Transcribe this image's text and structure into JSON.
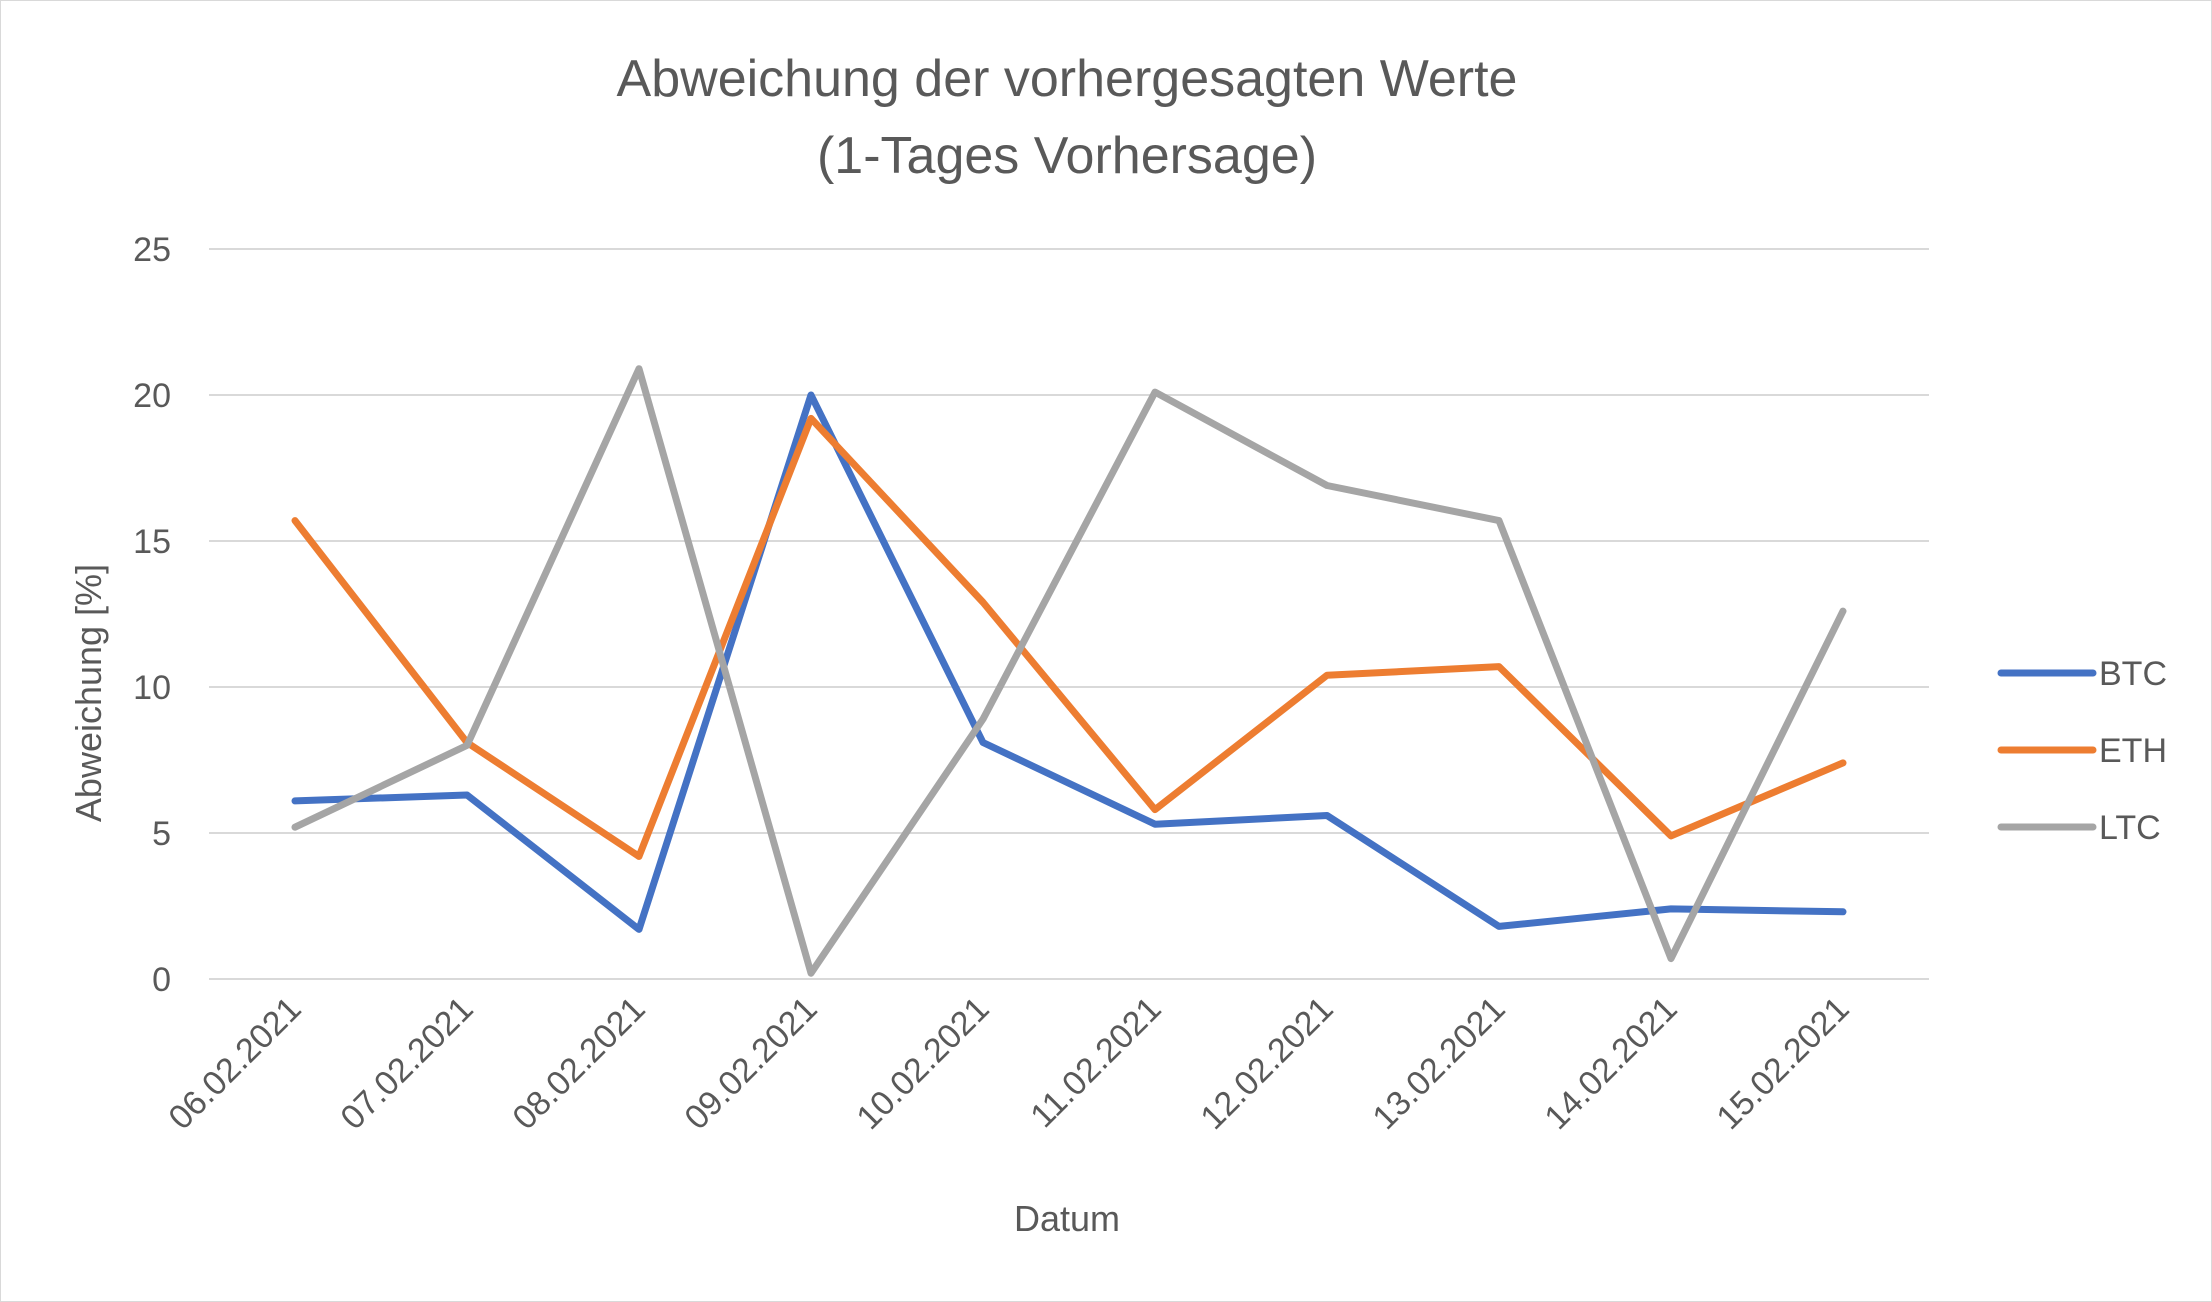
{
  "chart_data": {
    "type": "line",
    "title_lines": [
      "Abweichung der vorhergesagten Werte",
      "(1-Tages Vorhersage)"
    ],
    "xlabel": "Datum",
    "ylabel": "Abweichung [%]",
    "ylim": [
      0,
      25
    ],
    "yticks": [
      "0",
      "5",
      "10",
      "15",
      "20",
      "25"
    ],
    "grid": true,
    "legend_position": "right",
    "categories": [
      "06.02.2021",
      "07.02.2021",
      "08.02.2021",
      "09.02.2021",
      "10.02.2021",
      "11.02.2021",
      "12.02.2021",
      "13.02.2021",
      "14.02.2021",
      "15.02.2021"
    ],
    "series": [
      {
        "name": "BTC",
        "color": "#4472c4",
        "values": [
          6.1,
          6.3,
          1.7,
          20.0,
          8.1,
          5.3,
          5.6,
          1.8,
          2.4,
          2.3
        ]
      },
      {
        "name": "ETH",
        "color": "#ed7d31",
        "values": [
          15.7,
          8.1,
          4.2,
          19.2,
          12.9,
          5.8,
          10.4,
          10.7,
          4.9,
          7.4
        ]
      },
      {
        "name": "LTC",
        "color": "#a5a5a5",
        "values": [
          5.2,
          8.0,
          20.9,
          0.2,
          8.9,
          20.1,
          16.9,
          15.7,
          0.7,
          12.6
        ]
      }
    ]
  }
}
